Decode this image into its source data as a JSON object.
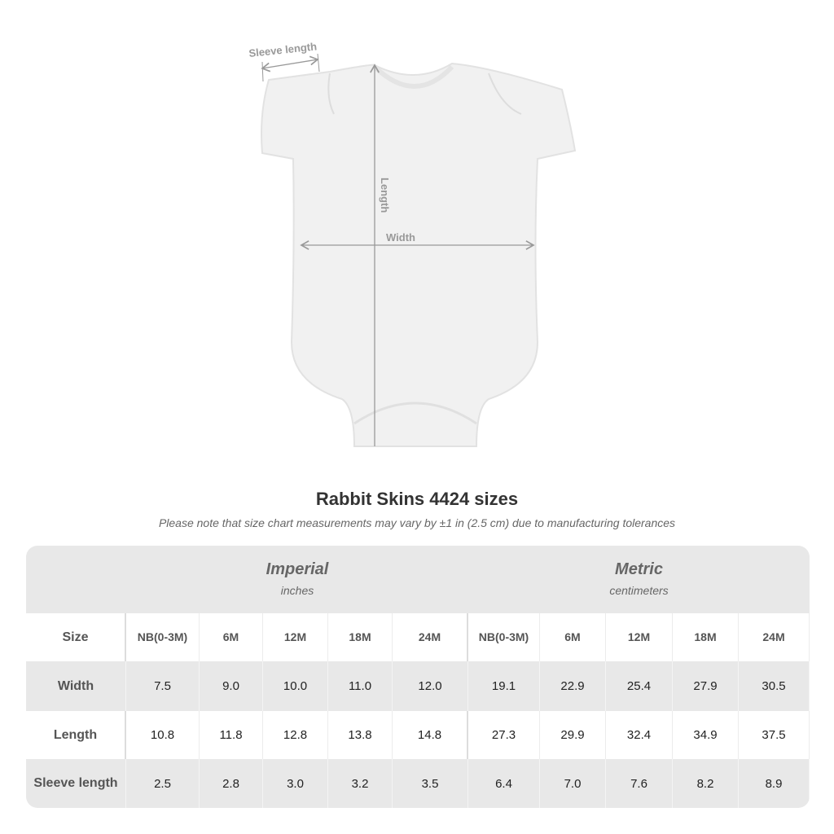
{
  "diagram": {
    "sleeve_label": "Sleeve length",
    "length_label": "Length",
    "width_label": "Width"
  },
  "title": "Rabbit Skins 4424 sizes",
  "note": "Please note that size chart measurements may vary by ±1 in (2.5 cm) due to manufacturing tolerances",
  "table": {
    "imperial": {
      "heading": "Imperial",
      "unit": "inches"
    },
    "metric": {
      "heading": "Metric",
      "unit": "centimeters"
    },
    "size_label": "Size",
    "sizes": [
      [
        "NB",
        "(0-3M)"
      ],
      [
        "6M"
      ],
      [
        "12M"
      ],
      [
        "18M"
      ],
      [
        "24M"
      ]
    ],
    "rows": [
      {
        "label": "Width",
        "imperial": [
          "7.5",
          "9.0",
          "10.0",
          "11.0",
          "12.0"
        ],
        "metric": [
          "19.1",
          "22.9",
          "25.4",
          "27.9",
          "30.5"
        ]
      },
      {
        "label": "Length",
        "imperial": [
          "10.8",
          "11.8",
          "12.8",
          "13.8",
          "14.8"
        ],
        "metric": [
          "27.3",
          "29.9",
          "32.4",
          "34.9",
          "37.5"
        ]
      },
      {
        "label": "Sleeve length",
        "imperial": [
          "2.5",
          "2.8",
          "3.0",
          "3.2",
          "3.5"
        ],
        "metric": [
          "6.4",
          "7.0",
          "7.6",
          "8.2",
          "8.9"
        ]
      }
    ]
  }
}
